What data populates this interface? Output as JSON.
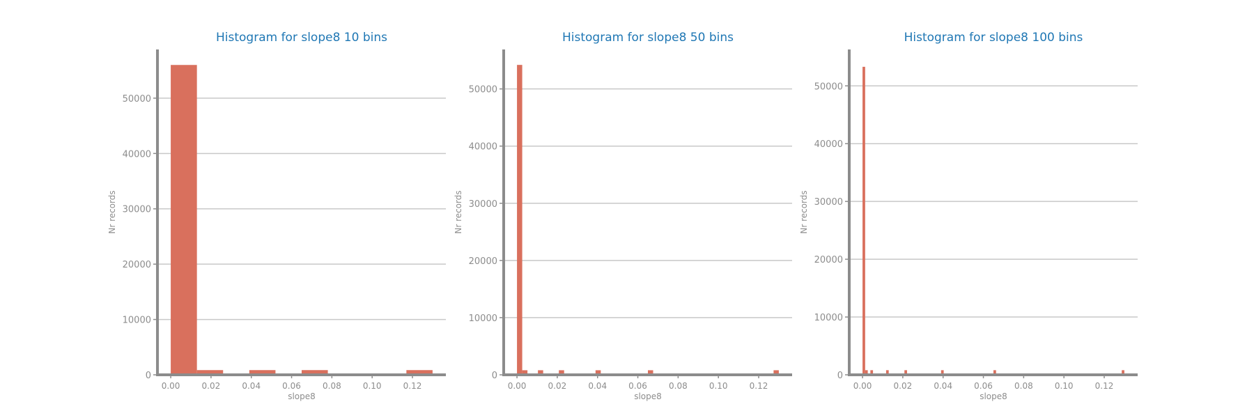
{
  "colors": {
    "bar": "#d9705d",
    "axis": "#8c8c8c",
    "grid": "#c8c8c8",
    "title": "#1f77b4"
  },
  "chart_data": [
    {
      "type": "bar",
      "title": "Histogram for slope8 10 bins",
      "xlabel": "slope8",
      "ylabel": "Nr records",
      "xlim": [
        -0.0066,
        0.1366
      ],
      "ylim": [
        0,
        58800
      ],
      "xticks": [
        0.0,
        0.02,
        0.04,
        0.06,
        0.08,
        0.1,
        0.12
      ],
      "xtick_labels": [
        "0.00",
        "0.02",
        "0.04",
        "0.06",
        "0.08",
        "0.10",
        "0.12"
      ],
      "yticks": [
        0,
        10000,
        20000,
        30000,
        40000,
        50000
      ],
      "ytick_labels": [
        "0",
        "10000",
        "20000",
        "30000",
        "40000",
        "50000"
      ],
      "grid": "horizontal",
      "bins": [
        {
          "start": 0.0,
          "end": 0.013,
          "count": 56000
        },
        {
          "start": 0.013,
          "end": 0.026,
          "count": 850
        },
        {
          "start": 0.039,
          "end": 0.052,
          "count": 850
        },
        {
          "start": 0.065,
          "end": 0.078,
          "count": 850
        },
        {
          "start": 0.117,
          "end": 0.13,
          "count": 850
        }
      ]
    },
    {
      "type": "bar",
      "title": "Histogram for slope8 50 bins",
      "xlabel": "slope8",
      "ylabel": "Nr records",
      "xlim": [
        -0.0066,
        0.1366
      ],
      "ylim": [
        0,
        56900
      ],
      "xticks": [
        0.0,
        0.02,
        0.04,
        0.06,
        0.08,
        0.1,
        0.12
      ],
      "xtick_labels": [
        "0.00",
        "0.02",
        "0.04",
        "0.06",
        "0.08",
        "0.10",
        "0.12"
      ],
      "yticks": [
        0,
        10000,
        20000,
        30000,
        40000,
        50000
      ],
      "ytick_labels": [
        "0",
        "10000",
        "20000",
        "30000",
        "40000",
        "50000"
      ],
      "grid": "horizontal",
      "bins": [
        {
          "start": 0.0,
          "end": 0.0026,
          "count": 54200
        },
        {
          "start": 0.0026,
          "end": 0.0052,
          "count": 800
        },
        {
          "start": 0.0104,
          "end": 0.013,
          "count": 800
        },
        {
          "start": 0.0208,
          "end": 0.0234,
          "count": 800
        },
        {
          "start": 0.039,
          "end": 0.0416,
          "count": 800
        },
        {
          "start": 0.065,
          "end": 0.0676,
          "count": 800
        },
        {
          "start": 0.1274,
          "end": 0.13,
          "count": 800
        }
      ]
    },
    {
      "type": "bar",
      "title": "Histogram for slope8 100 bins",
      "xlabel": "slope8",
      "ylabel": "Nr records",
      "xlim": [
        -0.0066,
        0.1366
      ],
      "ylim": [
        0,
        56300
      ],
      "xticks": [
        0.0,
        0.02,
        0.04,
        0.06,
        0.08,
        0.1,
        0.12
      ],
      "xtick_labels": [
        "0.00",
        "0.02",
        "0.04",
        "0.06",
        "0.08",
        "0.10",
        "0.12"
      ],
      "yticks": [
        0,
        10000,
        20000,
        30000,
        40000,
        50000
      ],
      "ytick_labels": [
        "0",
        "10000",
        "20000",
        "30000",
        "40000",
        "50000"
      ],
      "grid": "horizontal",
      "bins": [
        {
          "start": 0.0,
          "end": 0.0013,
          "count": 53300
        },
        {
          "start": 0.0013,
          "end": 0.0026,
          "count": 800
        },
        {
          "start": 0.0039,
          "end": 0.0052,
          "count": 800
        },
        {
          "start": 0.0117,
          "end": 0.013,
          "count": 800
        },
        {
          "start": 0.0208,
          "end": 0.0221,
          "count": 800
        },
        {
          "start": 0.039,
          "end": 0.0403,
          "count": 800
        },
        {
          "start": 0.065,
          "end": 0.0663,
          "count": 800
        },
        {
          "start": 0.1287,
          "end": 0.13,
          "count": 800
        }
      ]
    }
  ]
}
